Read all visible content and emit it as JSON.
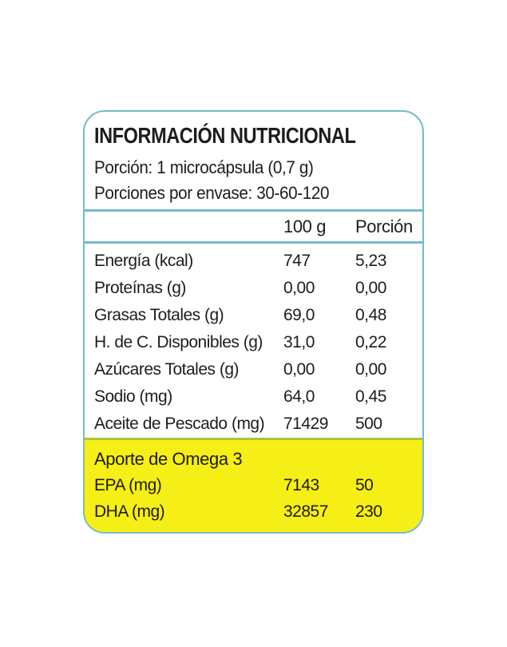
{
  "label": {
    "title": "INFORMACIÓN NUTRICIONAL",
    "serving_size": "Porción: 1 microcápsula (0,7 g)",
    "servings_per_container": "Porciones por envase: 30-60-120",
    "columns": {
      "per_100g": "100 g",
      "portion": "Porción"
    },
    "rows": [
      {
        "name": "Energía (kcal)",
        "per_100g": "747",
        "portion": "5,23"
      },
      {
        "name": "Proteínas (g)",
        "per_100g": "0,00",
        "portion": "0,00"
      },
      {
        "name": "Grasas Totales (g)",
        "per_100g": "69,0",
        "portion": "0,48"
      },
      {
        "name": "H. de C. Disponibles (g)",
        "per_100g": "31,0",
        "portion": "0,22"
      },
      {
        "name": "Azúcares Totales (g)",
        "per_100g": "0,00",
        "portion": "0,00"
      },
      {
        "name": "Sodio (mg)",
        "per_100g": "64,0",
        "portion": "0,45"
      },
      {
        "name": "Aceite de Pescado (mg)",
        "per_100g": "71429",
        "portion": "500"
      }
    ],
    "omega": {
      "heading": "Aporte de Omega 3",
      "rows": [
        {
          "name": "EPA (mg)",
          "per_100g": "7143",
          "portion": "50"
        },
        {
          "name": "DHA (mg)",
          "per_100g": "32857",
          "portion": "230"
        }
      ]
    },
    "colors": {
      "border": "#74bcc8",
      "divider": "#74bcc8",
      "highlight_background": "#f6ee17",
      "highlight_edge": "#a9c73a",
      "text": "#1d1d1b"
    }
  }
}
